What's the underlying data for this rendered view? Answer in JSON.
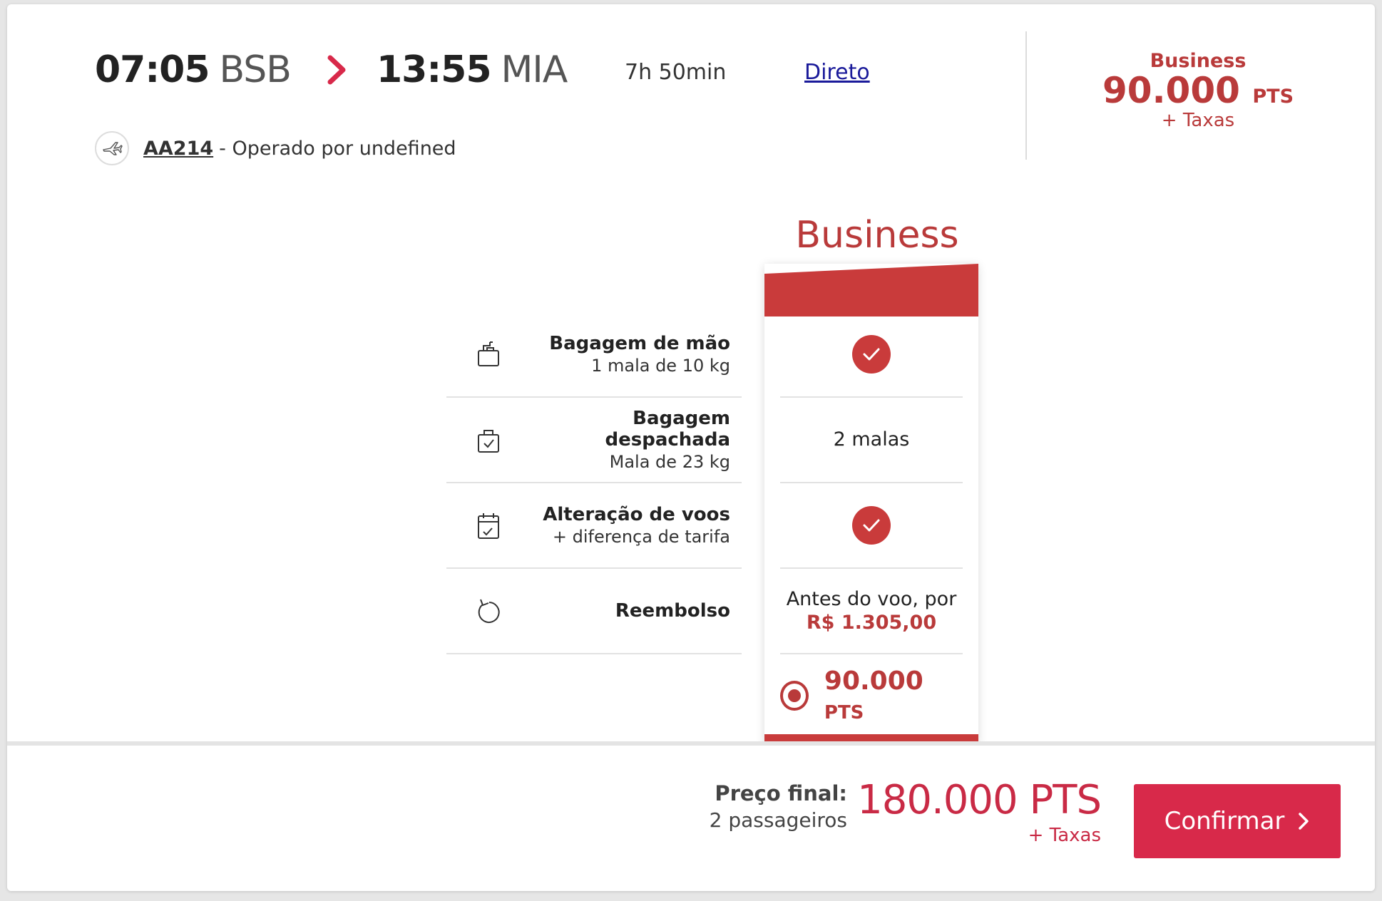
{
  "flight": {
    "departure_time": "07:05",
    "departure_code": "BSB",
    "arrival_time": "13:55",
    "arrival_code": "MIA",
    "duration": "7h 50min",
    "stops": "Direto",
    "flight_number": "AA214",
    "operated_by": "- Operado por undefined"
  },
  "top_price": {
    "cabin": "Business",
    "points": "90.000",
    "points_unit": "PTS",
    "taxes": "+ Taxas"
  },
  "comparison": {
    "cabin_title": "Business",
    "features": [
      {
        "title": "Bagagem de mão",
        "subtitle": "1 mala de 10 kg",
        "icon": "hand-luggage-icon",
        "value_type": "check"
      },
      {
        "title": "Bagagem despachada",
        "subtitle": "Mala de 23 kg",
        "icon": "checked-luggage-icon",
        "value": "2 malas"
      },
      {
        "title": "Alteração de voos",
        "subtitle": "+ diferença de tarifa",
        "icon": "calendar-change-icon",
        "value_type": "check"
      },
      {
        "title": "Reembolso",
        "subtitle": "",
        "icon": "refund-icon",
        "value": "Antes do voo, por",
        "value_price": "R$ 1.305,00"
      }
    ],
    "selected_points": "90.000",
    "selected_unit": "PTS"
  },
  "footer": {
    "final_label": "Preço final:",
    "passengers": "2 passageiros",
    "total": "180.000 PTS",
    "taxes": "+ Taxas",
    "confirm_label": "Confirmar"
  },
  "colors": {
    "brand_red": "#b93a3a",
    "accent_pink": "#d8294a",
    "link_blue": "#1a1a9a"
  }
}
